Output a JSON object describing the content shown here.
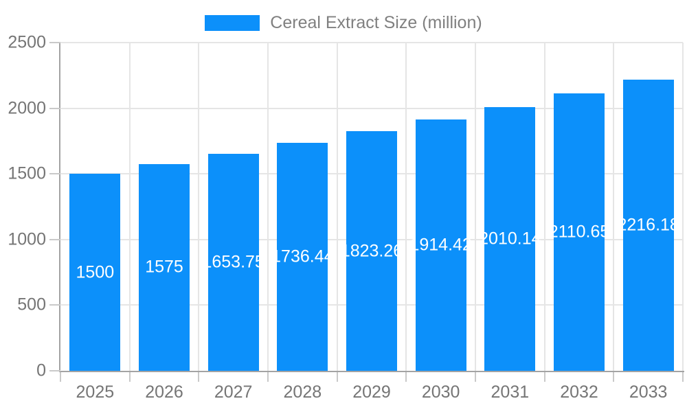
{
  "chart_data": {
    "type": "bar",
    "title": "Cereal Extract Size (million)",
    "legend": {
      "label": "Cereal Extract Size (million)",
      "position": "top"
    },
    "categories": [
      "2025",
      "2026",
      "2027",
      "2028",
      "2029",
      "2030",
      "2031",
      "2032",
      "2033"
    ],
    "series": [
      {
        "name": "Cereal Extract Size (million)",
        "values": [
          1500,
          1575,
          1653.75,
          1736.44,
          1823.26,
          1914.42,
          2010.14,
          2110.65,
          2216.18
        ]
      }
    ],
    "value_labels": [
      "1500",
      "1575",
      "1653.75",
      "1736.44",
      "1823.26",
      "1914.42",
      "2010.14",
      "2110.65",
      "2216.18"
    ],
    "xlabel": "",
    "ylabel": "",
    "ylim": [
      0,
      2500
    ],
    "yticks": [
      0,
      500,
      1000,
      1500,
      2000,
      2500
    ],
    "grid": true,
    "colors": {
      "bar": "#0C90FA",
      "grid": "#e5e5e5",
      "axis": "#a3a3a3",
      "tick": "#c9c9c9",
      "axis_text": "#757575",
      "legend_text": "#808080",
      "bar_label": "#ffffff"
    }
  }
}
